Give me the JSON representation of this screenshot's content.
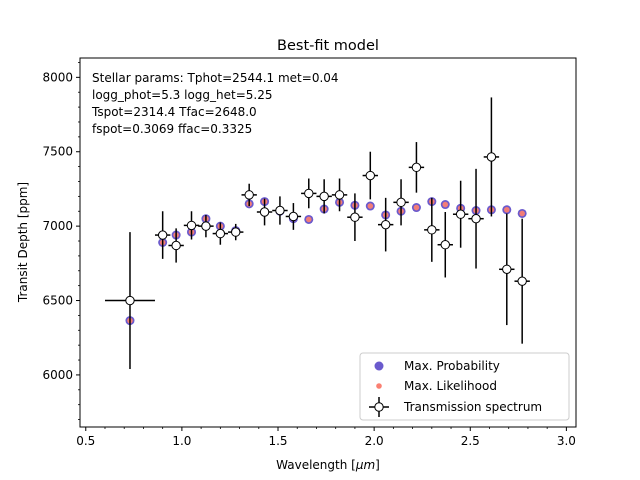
{
  "chart_data": {
    "type": "scatter",
    "title": "Best-fit model",
    "xlabel": "Wavelength [",
    "xlabel_unit": "μm",
    "xlabel_close": "]",
    "ylabel": "Transit Depth [ppm]",
    "xlim": [
      0.47,
      3.05
    ],
    "ylim": [
      5650,
      8130
    ],
    "xticks": [
      0.5,
      1.0,
      1.5,
      2.0,
      2.5,
      3.0
    ],
    "xtick_labels": [
      "0.5",
      "1.0",
      "1.5",
      "2.0",
      "2.5",
      "3.0"
    ],
    "yticks": [
      6000,
      6500,
      7000,
      7500,
      8000
    ],
    "ytick_labels": [
      "6000",
      "6500",
      "7000",
      "7500",
      "8000"
    ],
    "annotation_lines": [
      "Stellar params: Tphot=2544.1 met=0.04",
      "logg_phot=5.3 logg_het=5.25",
      "Tspot=2314.4 Tfac=2648.0",
      "fspot=0.3069 ffac=0.3325"
    ],
    "legend": {
      "placement": "lower right",
      "entries": [
        "Max. Probability",
        "Max. Likelihood",
        "Transmission spectrum"
      ]
    },
    "colors": {
      "max_probability": "#6a5acd",
      "max_likelihood": "#fa8072",
      "spectrum_marker_face": "#ffffff",
      "spectrum_marker_edge": "#000000"
    },
    "series": [
      {
        "name": "Max. Probability",
        "x": [
          0.73,
          0.9,
          0.97,
          1.05,
          1.125,
          1.2,
          1.28,
          1.35,
          1.43,
          1.51,
          1.58,
          1.66,
          1.74,
          1.82,
          1.9,
          1.98,
          2.06,
          2.14,
          2.22,
          2.3,
          2.37,
          2.45,
          2.53,
          2.61,
          2.69,
          2.77
        ],
        "y": [
          6365,
          6890,
          6940,
          6960,
          7050,
          7000,
          6970,
          7150,
          7165,
          7100,
          7050,
          7045,
          7115,
          7160,
          7140,
          7135,
          7075,
          7100,
          7125,
          7165,
          7145,
          7120,
          7105,
          7110,
          7110,
          7085
        ]
      },
      {
        "name": "Max. Likelihood",
        "x": [
          0.73,
          0.9,
          0.97,
          1.05,
          1.125,
          1.2,
          1.28,
          1.35,
          1.43,
          1.51,
          1.58,
          1.66,
          1.74,
          1.82,
          1.9,
          1.98,
          2.06,
          2.14,
          2.22,
          2.3,
          2.37,
          2.45,
          2.53,
          2.61,
          2.69,
          2.77
        ],
        "y": [
          6365,
          6890,
          6940,
          6960,
          7050,
          7000,
          6970,
          7150,
          7165,
          7100,
          7050,
          7045,
          7115,
          7160,
          7140,
          7135,
          7075,
          7100,
          7125,
          7165,
          7145,
          7120,
          7105,
          7110,
          7110,
          7085
        ]
      },
      {
        "name": "Transmission spectrum",
        "x": [
          0.73,
          0.9,
          0.97,
          1.05,
          1.125,
          1.2,
          1.28,
          1.35,
          1.43,
          1.51,
          1.58,
          1.66,
          1.74,
          1.82,
          1.9,
          1.98,
          2.06,
          2.14,
          2.22,
          2.3,
          2.37,
          2.45,
          2.53,
          2.61,
          2.69,
          2.77
        ],
        "y": [
          6500,
          6940,
          6870,
          7005,
          7000,
          6950,
          6960,
          7210,
          7095,
          7105,
          7065,
          7220,
          7200,
          7210,
          7060,
          7340,
          7010,
          7160,
          7395,
          6975,
          6875,
          7080,
          7050,
          7465,
          6710,
          6630
        ],
        "xerr": [
          0.13,
          0.04,
          0.04,
          0.04,
          0.04,
          0.04,
          0.04,
          0.04,
          0.04,
          0.04,
          0.04,
          0.04,
          0.04,
          0.04,
          0.04,
          0.04,
          0.04,
          0.04,
          0.04,
          0.04,
          0.04,
          0.04,
          0.04,
          0.04,
          0.04,
          0.04
        ],
        "yerr": [
          460,
          160,
          115,
          95,
          75,
          75,
          55,
          75,
          90,
          95,
          90,
          100,
          115,
          110,
          160,
          160,
          180,
          155,
          170,
          215,
          220,
          225,
          335,
          400,
          375,
          420
        ]
      }
    ]
  }
}
